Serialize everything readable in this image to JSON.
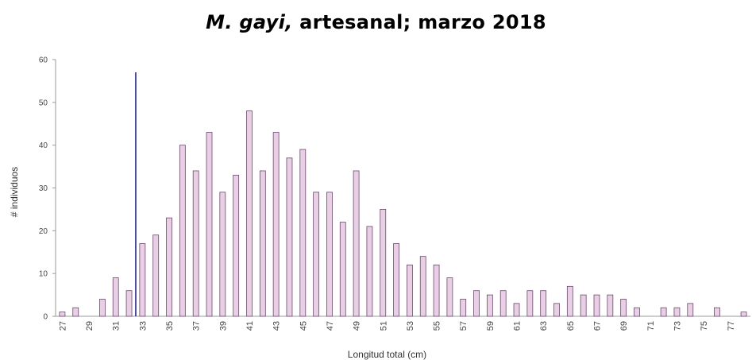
{
  "chart_data": {
    "type": "bar",
    "title": {
      "species": "M. gayi,",
      "rest": " artesanal; marzo 2018"
    },
    "xlabel": "Longitud total (cm)",
    "ylabel": "# individuos",
    "ylim": [
      0,
      60
    ],
    "yticks": [
      0,
      10,
      20,
      30,
      40,
      50,
      60
    ],
    "categories": [
      27,
      28,
      29,
      30,
      31,
      32,
      33,
      34,
      35,
      36,
      37,
      38,
      39,
      40,
      41,
      42,
      43,
      44,
      45,
      46,
      47,
      48,
      49,
      50,
      51,
      52,
      53,
      54,
      55,
      56,
      57,
      58,
      59,
      60,
      61,
      62,
      63,
      64,
      65,
      66,
      67,
      68,
      69,
      70,
      71,
      72,
      73,
      74,
      75,
      76,
      77,
      78
    ],
    "xtick_labels": [
      "27",
      "29",
      "31",
      "33",
      "35",
      "37",
      "39",
      "41",
      "43",
      "45",
      "47",
      "49",
      "51",
      "53",
      "55",
      "57",
      "59",
      "61",
      "63",
      "65",
      "67",
      "69",
      "71",
      "73",
      "75",
      "77"
    ],
    "values": [
      1,
      2,
      0,
      4,
      9,
      6,
      17,
      19,
      23,
      40,
      34,
      43,
      29,
      33,
      48,
      34,
      43,
      37,
      39,
      29,
      29,
      22,
      34,
      21,
      25,
      17,
      12,
      14,
      12,
      9,
      4,
      6,
      5,
      6,
      3,
      6,
      6,
      3,
      7,
      5,
      5,
      5,
      4,
      2,
      0,
      2,
      2,
      3,
      0,
      2,
      0,
      1
    ],
    "reference_line_x": 32.5,
    "bar_color": "#e8cfe6",
    "bar_edge": "#6b4a6b",
    "line_color": "#1a1a8c",
    "grid": false,
    "legend": "none"
  }
}
